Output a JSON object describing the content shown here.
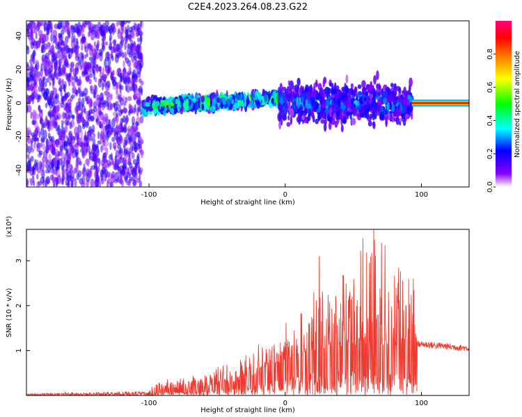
{
  "title": "C2E4.2023.264.08.23.G22",
  "colors": {
    "snr_line": "#f03a30",
    "axis": "#000000",
    "background": "#ffffff"
  },
  "chart_data": [
    {
      "type": "heatmap",
      "title": "C2E4.2023.264.08.23.G22",
      "xlabel": "Height of straight line (km)",
      "ylabel": "Frequency (Hz)",
      "xlim": [
        -190,
        135
      ],
      "ylim": [
        -50,
        49
      ],
      "x_ticks": [
        -100,
        0,
        100
      ],
      "x_tick_labels": [
        "-100",
        "0",
        "100"
      ],
      "y_ticks": [
        -40,
        -20,
        0,
        20,
        40
      ],
      "y_tick_labels": [
        "-40",
        "-20",
        "0",
        "20",
        "40"
      ],
      "colorbar": {
        "label": "Normalized spectral amplitude",
        "range": [
          0.0,
          1.0
        ],
        "ticks": [
          0.0,
          0.2,
          0.4,
          0.6,
          0.8
        ],
        "tick_labels": [
          "0.0",
          "0.2",
          "0.4",
          "0.6",
          "0.8"
        ],
        "colormap": [
          "#ffffff",
          "#8800ff",
          "#0000ff",
          "#00ffff",
          "#00ff00",
          "#ffff00",
          "#ff8000",
          "#ff0000",
          "#ff0080"
        ]
      },
      "regions": [
        {
          "x_range": [
            -190,
            -105
          ],
          "freq_center": 0,
          "freq_spread": 49,
          "amplitude": 0.15,
          "description": "broad noise"
        },
        {
          "x_range": [
            -105,
            -5
          ],
          "freq_center_start": -2,
          "freq_center_end": 3,
          "freq_spread": 6,
          "amplitude": 0.45
        },
        {
          "x_range": [
            -5,
            93
          ],
          "freq_center": 0,
          "freq_spread": 18,
          "amplitude": 0.25
        },
        {
          "x_range": [
            93,
            135
          ],
          "freq_center": 0,
          "freq_spread": 1,
          "amplitude": 0.95
        }
      ]
    },
    {
      "type": "line",
      "xlabel": "Height of straight line (km)",
      "ylabel": "SNR (10 * v/v)",
      "y_multiplier_label": "(x10⁴)",
      "xlim": [
        -190,
        135
      ],
      "ylim": [
        0,
        3.7
      ],
      "x_ticks": [
        -100,
        0,
        100
      ],
      "x_tick_labels": [
        "-100",
        "0",
        "100"
      ],
      "y_ticks": [
        1,
        2,
        3
      ],
      "y_tick_labels": [
        "1",
        "2",
        "3"
      ],
      "envelope": [
        {
          "x": -190,
          "mean": 0.02,
          "max": 0.05
        },
        {
          "x": -100,
          "mean": 0.05,
          "max": 0.1
        },
        {
          "x": -95,
          "mean": 0.12,
          "max": 0.35
        },
        {
          "x": -60,
          "mean": 0.2,
          "max": 0.5
        },
        {
          "x": -30,
          "mean": 0.35,
          "max": 0.9
        },
        {
          "x": -15,
          "mean": 0.6,
          "max": 1.3
        },
        {
          "x": 0,
          "mean": 0.8,
          "max": 1.6
        },
        {
          "x": 20,
          "mean": 1.0,
          "max": 2.3
        },
        {
          "x": 40,
          "mean": 1.1,
          "max": 2.6
        },
        {
          "x": 65,
          "mean": 1.15,
          "max": 3.7
        },
        {
          "x": 95,
          "mean": 1.1,
          "max": 2.6
        },
        {
          "x": 97,
          "mean": 1.15,
          "max": 1.25
        },
        {
          "x": 135,
          "mean": 1.05,
          "max": 1.15
        }
      ],
      "peaks": [
        {
          "x": 65,
          "y": 3.7
        },
        {
          "x": 57,
          "y": 3.5
        },
        {
          "x": 25,
          "y": 3.1
        },
        {
          "x": 94,
          "y": 2.6
        }
      ]
    }
  ]
}
